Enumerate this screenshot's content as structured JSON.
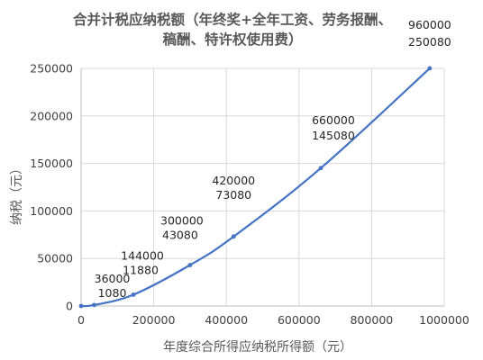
{
  "chart_data": {
    "type": "line",
    "title_lines": [
      "合并计税应纳税额（年终奖+全年工资、劳务报酬、",
      "稿酬、特许权使用费）"
    ],
    "xlabel": "年度综合所得应纳税所得额（元）",
    "ylabel": "纳税（元）",
    "xlim": [
      0,
      1000000
    ],
    "ylim": [
      0,
      250000
    ],
    "x_ticks": [
      0,
      200000,
      400000,
      600000,
      800000,
      1000000
    ],
    "y_ticks": [
      0,
      50000,
      100000,
      150000,
      200000,
      250000
    ],
    "grid": "vertical-and-horizontal",
    "points": [
      {
        "x": 0,
        "y": 0
      },
      {
        "x": 36000,
        "y": 1080
      },
      {
        "x": 144000,
        "y": 11880
      },
      {
        "x": 300000,
        "y": 43080
      },
      {
        "x": 420000,
        "y": 73080
      },
      {
        "x": 660000,
        "y": 145080
      },
      {
        "x": 960000,
        "y": 250080
      }
    ],
    "labels": [
      {
        "text": "36000",
        "x": 36000,
        "y": 1080
      },
      {
        "text": "1080",
        "x": 36000,
        "y": 1080
      },
      {
        "text": "144000",
        "x": 144000,
        "y": 11880
      },
      {
        "text": "11880",
        "x": 144000,
        "y": 11880
      },
      {
        "text": "300000",
        "x": 300000,
        "y": 43080
      },
      {
        "text": "43080",
        "x": 300000,
        "y": 43080
      },
      {
        "text": "420000",
        "x": 420000,
        "y": 73080
      },
      {
        "text": "73080",
        "x": 420000,
        "y": 73080
      },
      {
        "text": "660000",
        "x": 660000,
        "y": 145080
      },
      {
        "text": "145080",
        "x": 660000,
        "y": 145080
      },
      {
        "text": "960000",
        "x": 960000,
        "y": 250080
      },
      {
        "text": "250080",
        "x": 960000,
        "y": 250080
      }
    ],
    "colors": {
      "line": "#4472c4",
      "grid": "#d9d9d9",
      "text": "#595959"
    }
  }
}
